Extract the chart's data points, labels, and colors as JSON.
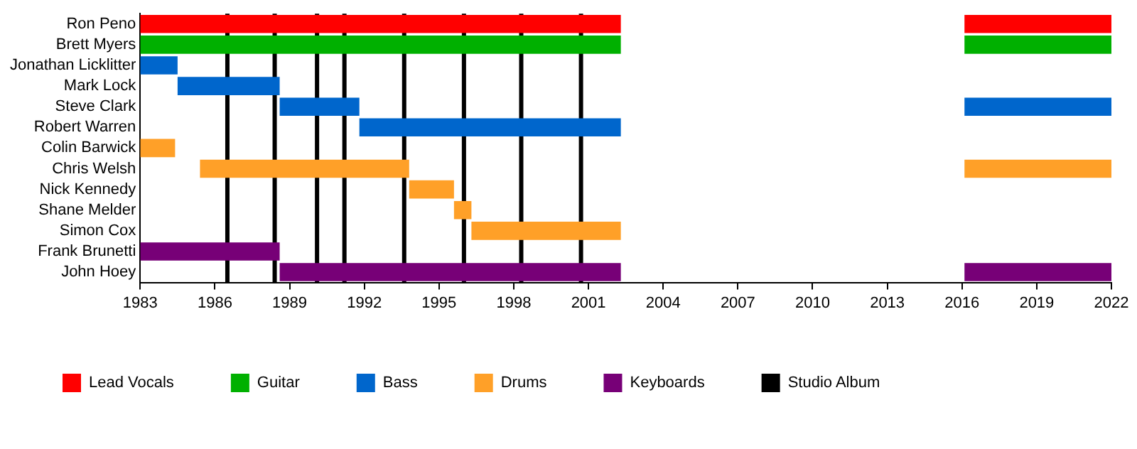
{
  "chart_data": {
    "type": "bar",
    "orientation": "horizontal",
    "categories": [
      "Ron Peno",
      "Brett Myers",
      "Jonathan Licklitter",
      "Mark Lock",
      "Steve Clark",
      "Robert Warren",
      "Colin Barwick",
      "Chris Welsh",
      "Nick Kennedy",
      "Shane Melder",
      "Simon Cox",
      "Frank Brunetti",
      "John Hoey"
    ],
    "series": [
      {
        "name": "Lead Vocals",
        "color": "#ff0000",
        "base": [
          1983,
          null,
          null,
          null,
          null,
          null,
          null,
          null,
          null,
          null,
          null,
          null,
          null
        ],
        "values": [
          19.3,
          null,
          null,
          null,
          null,
          null,
          null,
          null,
          null,
          null,
          null,
          null,
          null
        ]
      },
      {
        "color": "#ff0000",
        "base": [
          2016.1,
          null,
          null,
          null,
          null,
          null,
          null,
          null,
          null,
          null,
          null,
          null,
          null
        ],
        "values": [
          5.9,
          null,
          null,
          null,
          null,
          null,
          null,
          null,
          null,
          null,
          null,
          null,
          null
        ]
      },
      {
        "name": "Guitar",
        "color": "#00b000",
        "base": [
          null,
          1983,
          null,
          null,
          null,
          null,
          null,
          null,
          null,
          null,
          null,
          null,
          null
        ],
        "values": [
          null,
          19.3,
          null,
          null,
          null,
          null,
          null,
          null,
          null,
          null,
          null,
          null,
          null
        ]
      },
      {
        "color": "#00b000",
        "base": [
          null,
          2016.1,
          null,
          null,
          null,
          null,
          null,
          null,
          null,
          null,
          null,
          null,
          null
        ],
        "values": [
          null,
          5.9,
          null,
          null,
          null,
          null,
          null,
          null,
          null,
          null,
          null,
          null,
          null
        ]
      },
      {
        "name": "Bass",
        "color": "#0066cc",
        "base": [
          null,
          null,
          1983,
          1984.5,
          1988.6,
          1991.8,
          null,
          null,
          null,
          null,
          null,
          null,
          null
        ],
        "values": [
          null,
          null,
          1.5,
          4.1,
          3.2,
          10.5,
          null,
          null,
          null,
          null,
          null,
          null,
          null
        ]
      },
      {
        "color": "#0066cc",
        "base": [
          null,
          null,
          null,
          null,
          2016.1,
          null,
          null,
          null,
          null,
          null,
          null,
          null,
          null
        ],
        "values": [
          null,
          null,
          null,
          null,
          5.9,
          null,
          null,
          null,
          null,
          null,
          null,
          null,
          null
        ]
      },
      {
        "name": "Drums",
        "color": "#ffa028",
        "base": [
          null,
          null,
          null,
          null,
          null,
          null,
          1983,
          1985.4,
          1993.8,
          1995.6,
          1996.3,
          null,
          null
        ],
        "values": [
          null,
          null,
          null,
          null,
          null,
          null,
          1.4,
          8.4,
          1.8,
          0.7,
          6.0,
          null,
          null
        ]
      },
      {
        "color": "#ffa028",
        "base": [
          null,
          null,
          null,
          null,
          null,
          null,
          null,
          2016.1,
          null,
          null,
          null,
          null,
          null
        ],
        "values": [
          null,
          null,
          null,
          null,
          null,
          null,
          null,
          5.9,
          null,
          null,
          null,
          null,
          null
        ]
      },
      {
        "name": "Keyboards",
        "color": "#770077",
        "base": [
          null,
          null,
          null,
          null,
          null,
          null,
          null,
          null,
          null,
          null,
          null,
          1983,
          1988.6
        ],
        "values": [
          null,
          null,
          null,
          null,
          null,
          null,
          null,
          null,
          null,
          null,
          null,
          5.6,
          13.7
        ]
      },
      {
        "color": "#770077",
        "base": [
          null,
          null,
          null,
          null,
          null,
          null,
          null,
          null,
          null,
          null,
          null,
          null,
          2016.1
        ],
        "values": [
          null,
          null,
          null,
          null,
          null,
          null,
          null,
          null,
          null,
          null,
          null,
          null,
          5.9
        ]
      }
    ],
    "xlim": [
      1983,
      2022
    ],
    "xticks": [
      1983,
      1986,
      1989,
      1992,
      1995,
      1998,
      2001,
      2004,
      2007,
      2010,
      2013,
      2016,
      2019,
      2022
    ],
    "ref_lines": [
      {
        "axis": "x",
        "value": 1986.5,
        "color": "#000000",
        "label": "Studio Album"
      },
      {
        "axis": "x",
        "value": 1988.4,
        "color": "#000000"
      },
      {
        "axis": "x",
        "value": 1990.1,
        "color": "#000000"
      },
      {
        "axis": "x",
        "value": 1991.2,
        "color": "#000000"
      },
      {
        "axis": "x",
        "value": 1993.6,
        "color": "#000000"
      },
      {
        "axis": "x",
        "value": 1996.0,
        "color": "#000000"
      },
      {
        "axis": "x",
        "value": 1998.3,
        "color": "#000000"
      },
      {
        "axis": "x",
        "value": 2000.7,
        "color": "#000000"
      }
    ],
    "grid": false,
    "legend": "bottom left"
  }
}
